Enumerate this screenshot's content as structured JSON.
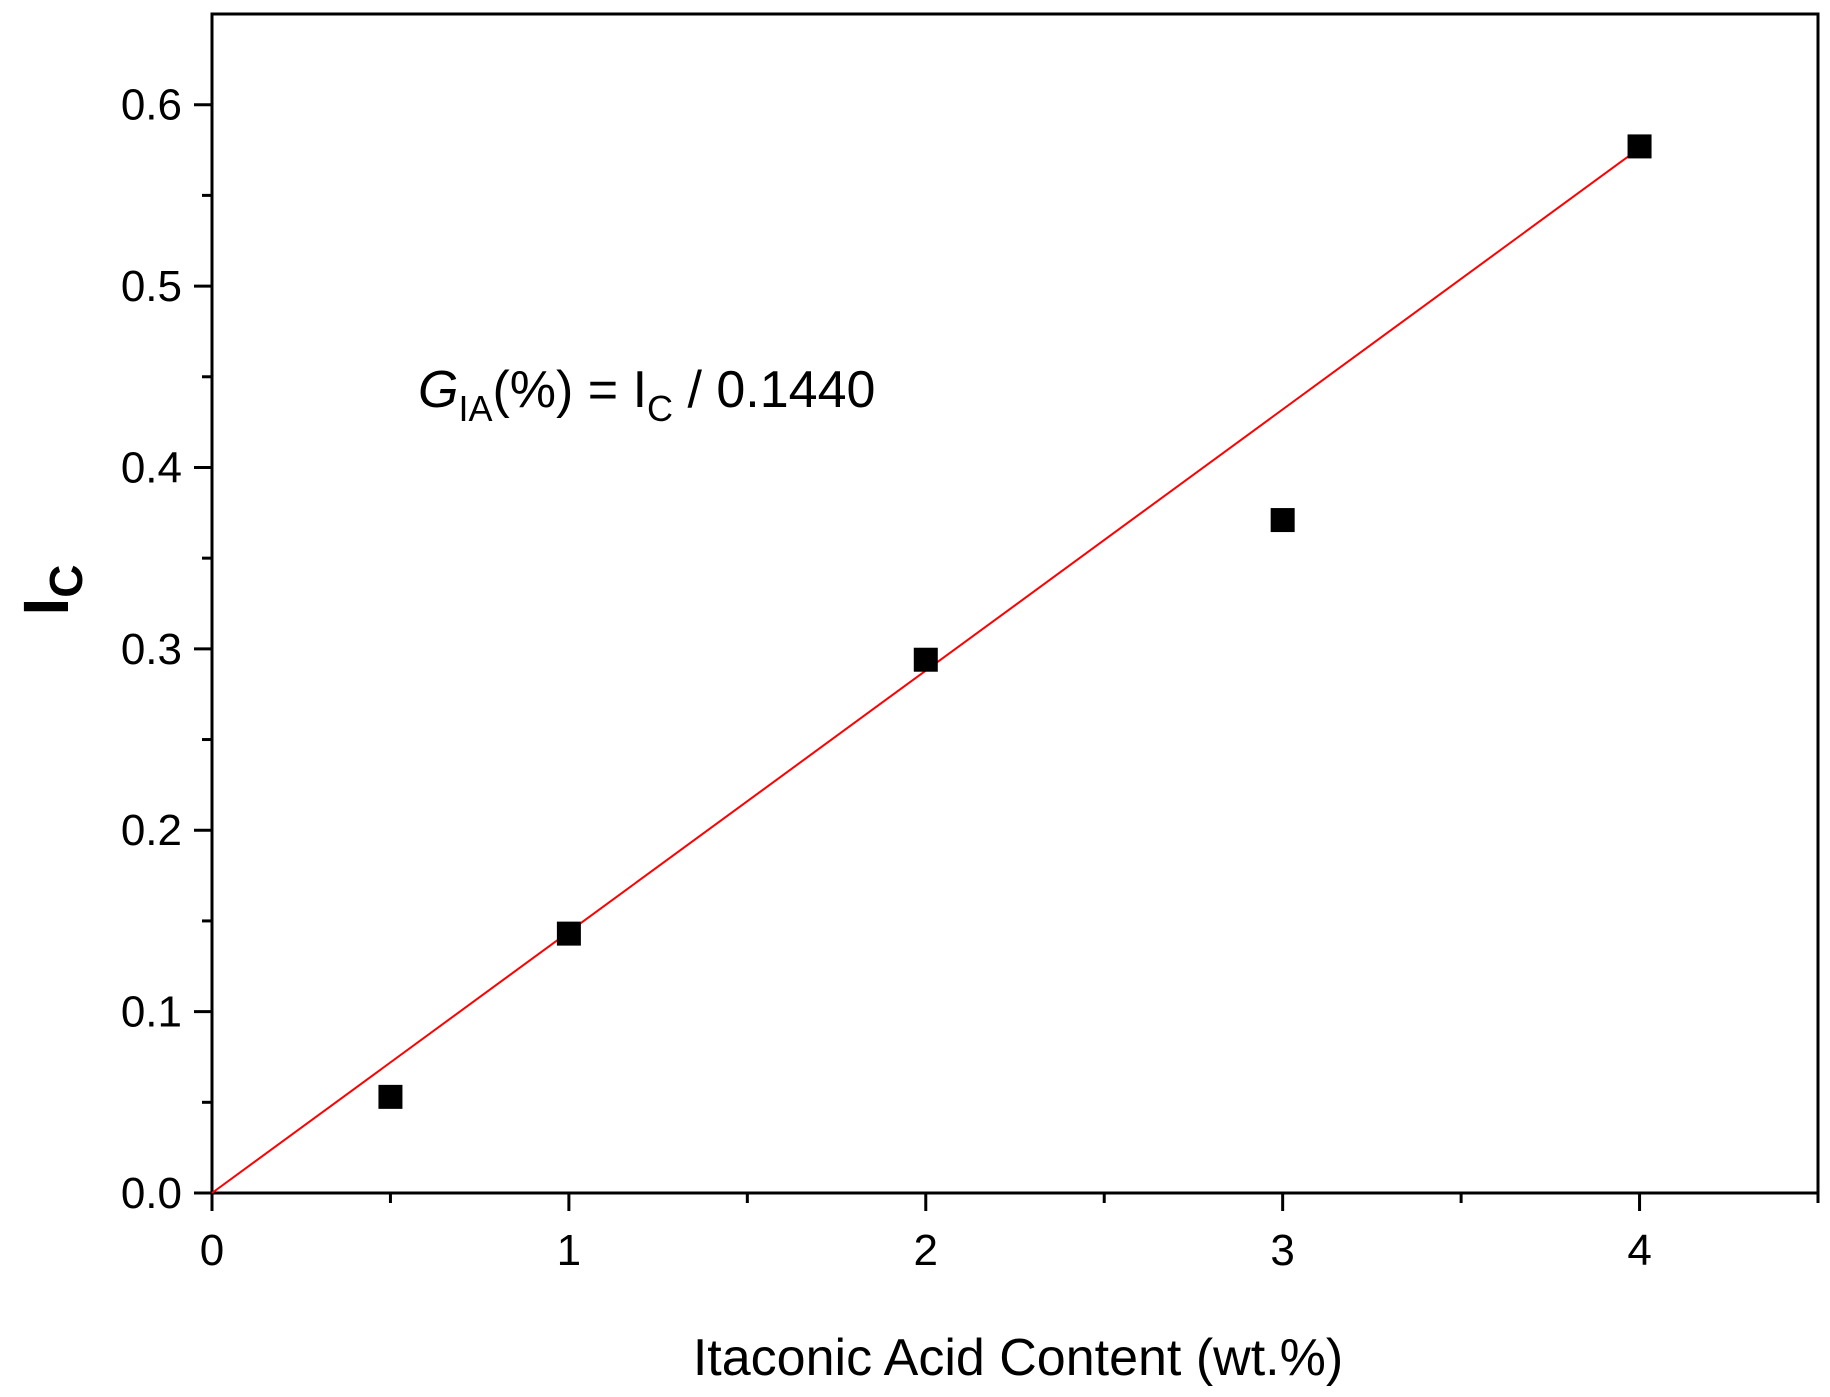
{
  "chart_data": {
    "type": "scatter",
    "xlabel": "Itaconic Acid Content (wt.%)",
    "ylabel": {
      "main": "I",
      "sub": "C"
    },
    "xlim": [
      0,
      4.5
    ],
    "ylim": [
      0,
      0.65
    ],
    "x_ticks": [
      0,
      1,
      2,
      3,
      4
    ],
    "x_tick_labels": [
      "0",
      "1",
      "2",
      "3",
      "4"
    ],
    "x_minor_ticks": [
      0.5,
      1.5,
      2.5,
      3.5,
      4.5
    ],
    "y_ticks": [
      0.0,
      0.1,
      0.2,
      0.3,
      0.4,
      0.5,
      0.6
    ],
    "y_tick_labels": [
      "0.0",
      "0.1",
      "0.2",
      "0.3",
      "0.4",
      "0.5",
      "0.6"
    ],
    "y_minor_ticks": [
      0.05,
      0.15,
      0.25,
      0.35,
      0.45,
      0.55
    ],
    "grid": false,
    "series": [
      {
        "marker": "square",
        "color": "#000000",
        "x": [
          0.5,
          1,
          2,
          3,
          4
        ],
        "y": [
          0.053,
          0.143,
          0.294,
          0.371,
          0.577
        ]
      }
    ],
    "fit_line": {
      "color": "#ff0000",
      "slope": 0.144,
      "intercept": 0,
      "x_range": [
        0,
        4
      ]
    },
    "annotation": {
      "G": "G",
      "sub_IA": "IA",
      "mid": "(%) = I",
      "sub_C": "C",
      "tail": " / 0.1440"
    }
  }
}
